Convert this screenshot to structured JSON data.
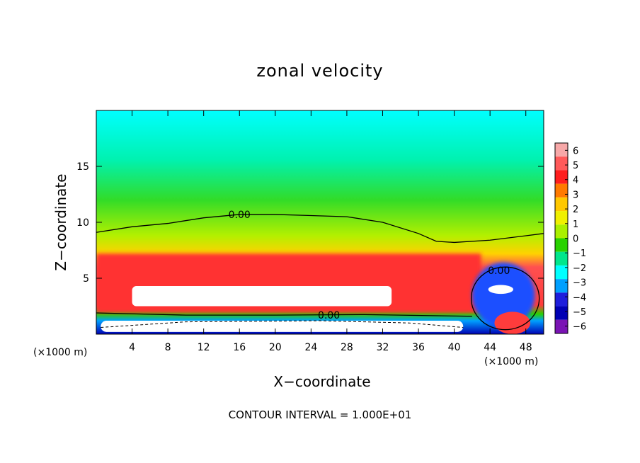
{
  "chart_data": {
    "type": "heatmap",
    "title": "zonal velocity",
    "xlabel": "X−coordinate",
    "ylabel": "Z−coordinate",
    "x_unit_left": "(×1000 m)",
    "x_unit_right": "(×1000 m)",
    "xlim": [
      0,
      50
    ],
    "ylim": [
      0,
      20
    ],
    "xticks": [
      4,
      8,
      12,
      16,
      20,
      24,
      28,
      32,
      36,
      40,
      44,
      48
    ],
    "yticks": [
      5,
      10,
      15
    ],
    "colorbar": {
      "ticks": [
        6,
        5,
        4,
        3,
        2,
        1,
        0,
        -1,
        -2,
        -3,
        -4,
        -5,
        -6
      ],
      "tick_labels": [
        "6",
        "5",
        "4",
        "3",
        "2",
        "1",
        "0",
        "−1",
        "−2",
        "−3",
        "−4",
        "−5",
        "−6"
      ],
      "colors": [
        "#f7a8a8",
        "#ff5a5a",
        "#ff1e1e",
        "#ff7a00",
        "#ffc800",
        "#f0f000",
        "#aaf000",
        "#28d200",
        "#00e68c",
        "#00ffff",
        "#00a0ff",
        "#1e1edc",
        "#0000b4",
        "#7a14b4"
      ]
    },
    "contour_labels": [
      "0.00",
      "0.00",
      "0.00"
    ],
    "footer": "CONTOUR INTERVAL = 1.000E+01",
    "fields": {
      "zero_contour_upper": {
        "x": [
          0,
          4,
          8,
          12,
          16,
          20,
          24,
          28,
          32,
          36,
          38,
          40,
          44,
          48,
          50
        ],
        "y": [
          9.1,
          9.6,
          9.9,
          10.4,
          10.7,
          10.7,
          10.6,
          10.5,
          10.0,
          9.0,
          8.3,
          8.2,
          8.4,
          8.8,
          9.0
        ]
      },
      "jet_core": {
        "x_range": [
          4,
          33
        ],
        "y_range": [
          2.5,
          4.3
        ],
        "max": 6.5
      },
      "ground_jet": {
        "x_range": [
          0.5,
          41
        ],
        "y_range": [
          0.2,
          1.2
        ],
        "min": -6.5
      }
    }
  }
}
